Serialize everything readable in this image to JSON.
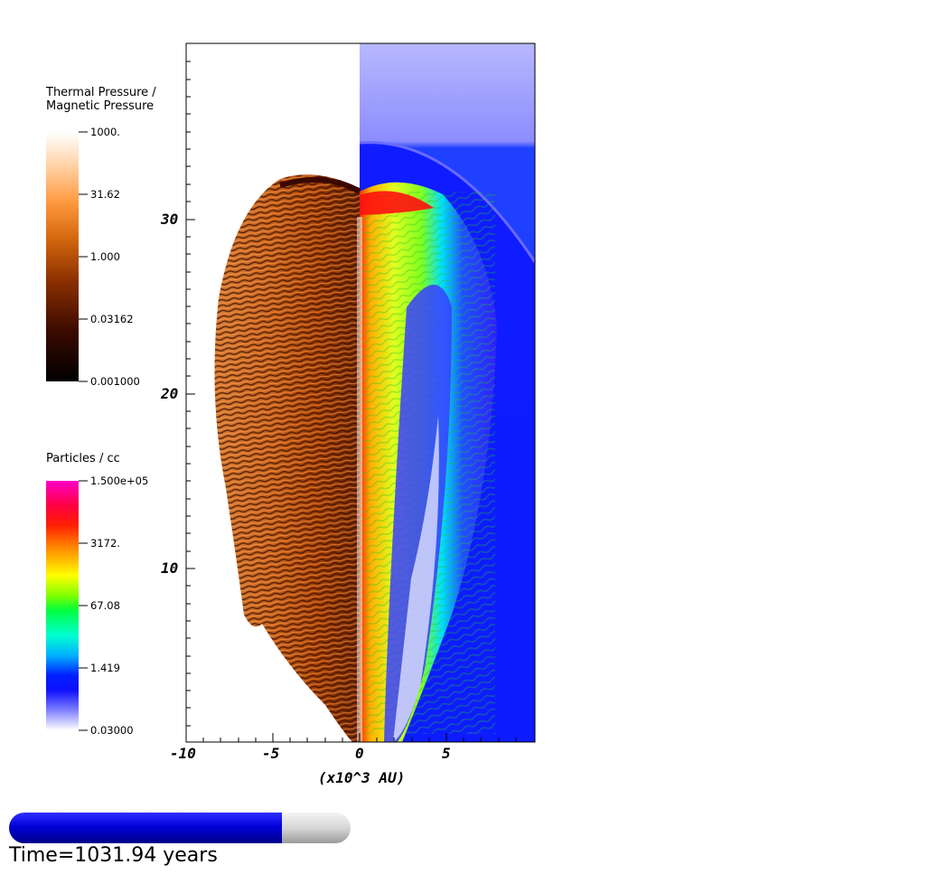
{
  "legend_thermal": {
    "title_line1": "Thermal Pressure /",
    "title_line2": "Magnetic Pressure",
    "ticks": [
      "1000.",
      "31.62",
      "1.000",
      "0.03162",
      "0.001000"
    ]
  },
  "legend_particles": {
    "title": "Particles / cc",
    "ticks": [
      "1.500e+05",
      "3172.",
      "67.08",
      "1.419",
      "0.03000"
    ]
  },
  "axes": {
    "x_ticks": [
      "-10",
      "-5",
      "0",
      "5"
    ],
    "y_ticks": [
      "30",
      "20",
      "10"
    ],
    "xlabel": "(x10^3 AU)"
  },
  "time": {
    "label": "Time=1031.94 years",
    "progress_fraction": 0.8
  },
  "colors": {
    "pressure_map": [
      "#000000",
      "#3a0a00",
      "#8a2f00",
      "#d76a10",
      "#ff9a40",
      "#ffe8d0",
      "#ffffff"
    ],
    "density_map": [
      "#ffffff",
      "#5050ff",
      "#0010ff",
      "#00d0ff",
      "#00ff40",
      "#ffff00",
      "#ff8000",
      "#ff0000",
      "#ff00c8"
    ],
    "progress_fill": "#0000d8",
    "progress_empty": "#d0d0d0"
  }
}
